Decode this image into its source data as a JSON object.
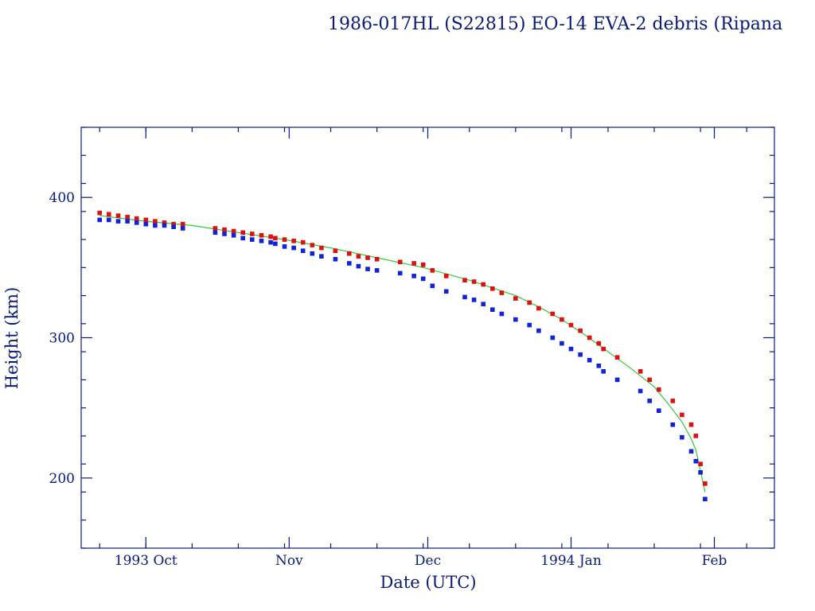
{
  "chart_data": {
    "type": "scatter",
    "title": "1986-017HL (S22815) EO-14 EVA-2 debris (Ripana",
    "xlabel": "Date (UTC)",
    "ylabel": "Height (km)",
    "x_unit": "days since 1993-09-01",
    "xlim": [
      16,
      166
    ],
    "ylim": [
      150,
      450
    ],
    "x_ticks": [
      {
        "label": "1993 Oct",
        "value": 30
      },
      {
        "label": "Nov",
        "value": 61
      },
      {
        "label": "Dec",
        "value": 91
      },
      {
        "label": "1994 Jan",
        "value": 122
      },
      {
        "label": "Feb",
        "value": 153
      }
    ],
    "y_ticks": [
      200,
      300,
      400
    ],
    "series": [
      {
        "name": "apogee",
        "color": "#dd1111",
        "x": [
          20,
          22,
          24,
          26,
          28,
          30,
          32,
          34,
          36,
          38,
          45,
          47,
          49,
          51,
          53,
          55,
          57,
          58,
          60,
          62,
          64,
          66,
          68,
          71,
          74,
          76,
          78,
          80,
          85,
          88,
          90,
          92,
          95,
          99,
          101,
          103,
          105,
          107,
          110,
          113,
          115,
          118,
          120,
          122,
          124,
          126,
          128,
          129,
          132,
          137,
          139,
          141,
          144,
          146,
          148,
          149,
          150,
          151
        ],
        "y": [
          389,
          388,
          387,
          386,
          385,
          384,
          383,
          382,
          381,
          381,
          378,
          377,
          376,
          375,
          374,
          373,
          372,
          371,
          370,
          369,
          368,
          366,
          364,
          362,
          360,
          358,
          357,
          356,
          354,
          353,
          352,
          348,
          344,
          341,
          340,
          338,
          335,
          332,
          328,
          325,
          321,
          317,
          313,
          309,
          305,
          300,
          296,
          292,
          286,
          276,
          270,
          263,
          255,
          245,
          238,
          230,
          210,
          196
        ]
      },
      {
        "name": "perigee",
        "color": "#1122dd",
        "x": [
          20,
          22,
          24,
          26,
          28,
          30,
          32,
          34,
          36,
          38,
          45,
          47,
          49,
          51,
          53,
          55,
          57,
          58,
          60,
          62,
          64,
          66,
          68,
          71,
          74,
          76,
          78,
          80,
          85,
          88,
          90,
          92,
          95,
          99,
          101,
          103,
          105,
          107,
          110,
          113,
          115,
          118,
          120,
          122,
          124,
          126,
          128,
          129,
          132,
          137,
          139,
          141,
          144,
          146,
          148,
          149,
          150,
          151
        ],
        "y": [
          384,
          384,
          383,
          383,
          382,
          381,
          380,
          380,
          379,
          378,
          375,
          374,
          373,
          371,
          370,
          369,
          368,
          367,
          365,
          364,
          362,
          360,
          358,
          356,
          353,
          351,
          349,
          348,
          346,
          344,
          342,
          337,
          333,
          329,
          327,
          324,
          320,
          317,
          313,
          309,
          305,
          300,
          296,
          292,
          288,
          284,
          280,
          276,
          270,
          262,
          255,
          248,
          238,
          229,
          219,
          212,
          204,
          185
        ]
      }
    ],
    "fit_line": {
      "name": "fit",
      "color": "#33cc33",
      "x": [
        20,
        30,
        40,
        50,
        60,
        70,
        80,
        90,
        100,
        110,
        115,
        120,
        125,
        130,
        135,
        140,
        143,
        146,
        148,
        149,
        150,
        151
      ],
      "y": [
        387,
        383,
        380,
        375,
        370,
        364,
        357,
        350,
        341,
        330,
        322,
        313,
        302,
        290,
        278,
        265,
        253,
        240,
        228,
        220,
        205,
        190
      ]
    }
  }
}
